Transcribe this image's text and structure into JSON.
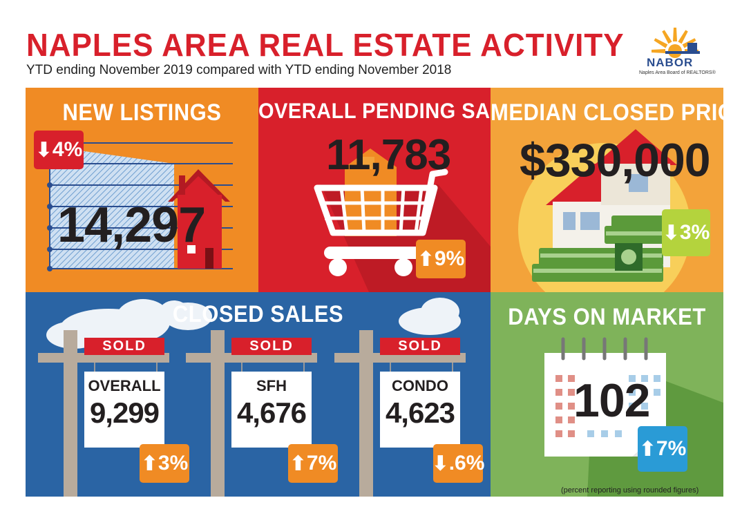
{
  "header": {
    "title": "NAPLES AREA REAL ESTATE ACTIVITY",
    "subtitle": "YTD ending November 2019 compared with YTD ending November 2018"
  },
  "logo": {
    "name": "NABOR",
    "tagline": "Naples Area Board of REALTORS®",
    "icon": "sunburst-pier-logo"
  },
  "new_listings": {
    "title": "NEW LISTINGS",
    "value": "14,297",
    "change": "4%",
    "direction": "down",
    "badge_color": "#d8202b"
  },
  "pending_sales": {
    "title": "OVERALL PENDING SALES",
    "value": "11,783",
    "change": "9%",
    "direction": "up",
    "badge_color": "#f08b24"
  },
  "median_price": {
    "title": "MEDIAN CLOSED PRICE",
    "value": "$330,000",
    "change": "3%",
    "direction": "down",
    "badge_color": "#b4d33d"
  },
  "closed_sales": {
    "title": "CLOSED SALES",
    "signs": [
      {
        "sold": "SOLD",
        "label": "OVERALL",
        "value": "9,299",
        "change": "3%",
        "direction": "up"
      },
      {
        "sold": "SOLD",
        "label": "SFH",
        "value": "4,676",
        "change": "7%",
        "direction": "up"
      },
      {
        "sold": "SOLD",
        "label": "CONDO",
        "value": "4,623",
        "change": ".6%",
        "direction": "down"
      }
    ]
  },
  "days_on_market": {
    "title": "DAYS ON MARKET",
    "value": "102",
    "change": "7%",
    "direction": "up",
    "badge_color": "#2a9bd6"
  },
  "footnote": "(percent reporting using rounded figures)",
  "colors": {
    "red": "#d8202b",
    "orange": "#f08b24",
    "yellow": "#f3a33a",
    "blue": "#2a64a4",
    "green": "#7fb35a"
  }
}
